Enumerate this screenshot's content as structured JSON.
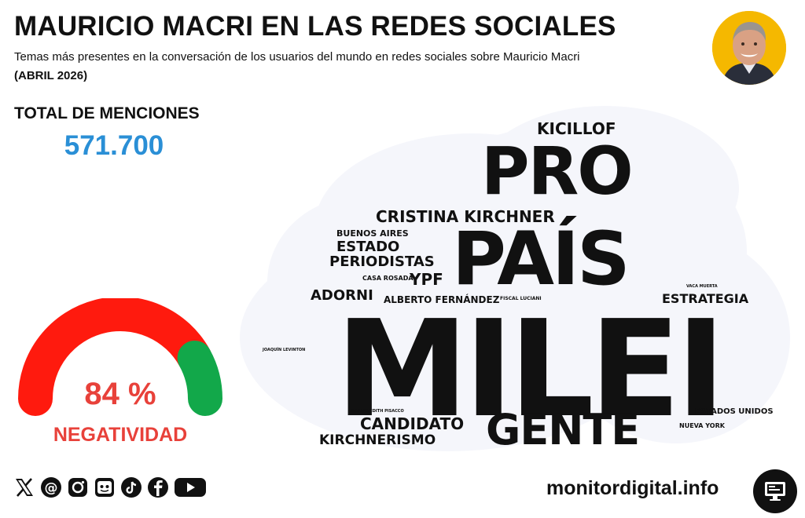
{
  "header": {
    "title": "MAURICIO MACRI EN LAS REDES SOCIALES",
    "subtitle": "Temas más presentes en la conversación de los usuarios del mundo en redes sociales sobre Mauricio Macri",
    "period": "(ABRIL 2026)"
  },
  "stats": {
    "total_label": "TOTAL DE MENCIONES",
    "total_value": "571.700",
    "negativity_pct": "84 %",
    "negativity_label": "NEGATIVIDAD",
    "negativity_value": 84
  },
  "colors": {
    "accent_blue": "#2a8fd6",
    "negative_red": "#e8413a",
    "gauge_red": "#ff1a0e",
    "gauge_green": "#12a84a",
    "purple": "#7b1a8c",
    "orange": "#f7a81b",
    "light_blue": "#8fd0ee",
    "dark": "#1c1c1c"
  },
  "chart_data": [
    {
      "type": "gauge",
      "title": "NEGATIVIDAD",
      "value": 84,
      "range": [
        0,
        100
      ],
      "segments": [
        {
          "name": "negativo",
          "value": 84,
          "color": "#ff1a0e"
        },
        {
          "name": "positivo",
          "value": 16,
          "color": "#12a84a"
        }
      ]
    },
    {
      "type": "wordcloud",
      "words": [
        {
          "text": "MILEI",
          "weight": 100,
          "color": "#7b1a8c"
        },
        {
          "text": "PAÍS",
          "weight": 58,
          "color": "#1c1c1c"
        },
        {
          "text": "PRO",
          "weight": 50,
          "color": "#f7a81b"
        },
        {
          "text": "GENTE",
          "weight": 34,
          "color": "#1c1c1c"
        },
        {
          "text": "CRISTINA KIRCHNER",
          "weight": 14,
          "color": "#8fd0ee"
        },
        {
          "text": "KICILLOF",
          "weight": 13,
          "color": "#8fd0ee"
        },
        {
          "text": "CANDIDATO",
          "weight": 12,
          "color": "#3a3a3a"
        },
        {
          "text": "ESTADO",
          "weight": 11,
          "color": "#3a3a3a"
        },
        {
          "text": "PERIODISTAS",
          "weight": 11,
          "color": "#3a3a3a"
        },
        {
          "text": "ADORNI",
          "weight": 11,
          "color": "#9c3fa8"
        },
        {
          "text": "YPF",
          "weight": 11,
          "color": "#4a9e93"
        },
        {
          "text": "ESTRATEGIA",
          "weight": 10,
          "color": "#3a3a3a"
        },
        {
          "text": "KIRCHNERISMO",
          "weight": 10,
          "color": "#8fd0ee"
        },
        {
          "text": "ALBERTO FERNÁNDEZ",
          "weight": 7,
          "color": "#8fd0ee"
        },
        {
          "text": "BUENOS AIRES",
          "weight": 6,
          "color": "#3a3a3a"
        },
        {
          "text": "ESTADOS UNIDOS",
          "weight": 6,
          "color": "#8fd0ee"
        },
        {
          "text": "NUEVA YORK",
          "weight": 4,
          "color": "#8fd0ee"
        },
        {
          "text": "CASA ROSADA",
          "weight": 4,
          "color": "#c44ab5"
        },
        {
          "text": "FISCAL LUCIANI",
          "weight": 3,
          "color": "#c44ab5"
        },
        {
          "text": "VACA MUERTA",
          "weight": 2,
          "color": "#8fd0ee"
        },
        {
          "text": "JOAQUÍN LEVINTON",
          "weight": 2,
          "color": "#c44ab5"
        },
        {
          "text": "MARINA EDITH PISACCO",
          "weight": 2,
          "color": "#3a3a3a"
        }
      ]
    }
  ],
  "footer": {
    "site": "monitordigital.info",
    "social_icons": [
      "x-icon",
      "threads-icon",
      "instagram-icon",
      "kick-icon",
      "tiktok-icon",
      "facebook-icon",
      "youtube-icon"
    ]
  }
}
